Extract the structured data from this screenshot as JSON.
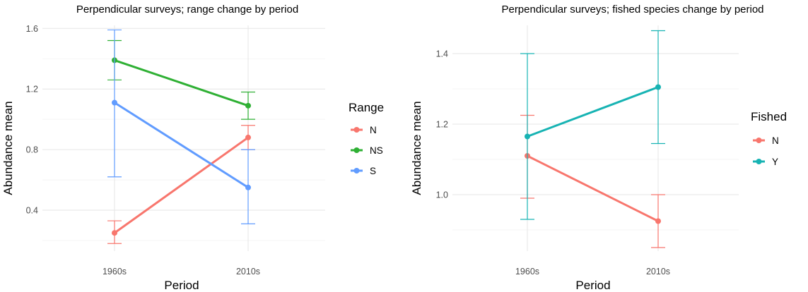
{
  "chart_data": [
    {
      "type": "line",
      "title": "Perpendicular surveys; range change by period",
      "xlabel": "Period",
      "ylabel": "Abundance mean",
      "categories": [
        "1960s",
        "2010s"
      ],
      "ylim": [
        0.13,
        1.62
      ],
      "yticks": [
        0.4,
        0.8,
        1.2,
        1.6
      ],
      "yticks_labels": [
        "0.4",
        "0.8",
        "1.2",
        "1.6"
      ],
      "grid": true,
      "legend": {
        "title": "Range",
        "position": "right"
      },
      "series": [
        {
          "name": "N",
          "color": "#f8766d",
          "values": [
            0.25,
            0.88
          ],
          "lower": [
            0.18,
            0.8
          ],
          "upper": [
            0.33,
            0.96
          ]
        },
        {
          "name": "NS",
          "color": "#2fb034",
          "values": [
            1.39,
            1.09
          ],
          "lower": [
            1.26,
            1.0
          ],
          "upper": [
            1.52,
            1.18
          ]
        },
        {
          "name": "S",
          "color": "#619cff",
          "values": [
            1.11,
            0.55
          ],
          "lower": [
            0.62,
            0.31
          ],
          "upper": [
            1.59,
            0.8
          ]
        }
      ]
    },
    {
      "type": "line",
      "title": "Perpendicular surveys; fished species change by period",
      "xlabel": "Period",
      "ylabel": "Abundance mean",
      "categories": [
        "1960s",
        "2010s"
      ],
      "ylim": [
        0.84,
        1.48
      ],
      "yticks": [
        1.0,
        1.2,
        1.4
      ],
      "yticks_labels": [
        "1.0",
        "1.2",
        "1.4"
      ],
      "grid": true,
      "legend": {
        "title": "Fished",
        "position": "right"
      },
      "series": [
        {
          "name": "N",
          "color": "#f8766d",
          "values": [
            1.11,
            0.925
          ],
          "lower": [
            0.99,
            0.85
          ],
          "upper": [
            1.225,
            1.0
          ]
        },
        {
          "name": "Y",
          "color": "#17b3b3",
          "values": [
            1.165,
            1.305
          ],
          "lower": [
            0.93,
            1.145
          ],
          "upper": [
            1.4,
            1.465
          ]
        }
      ]
    }
  ]
}
